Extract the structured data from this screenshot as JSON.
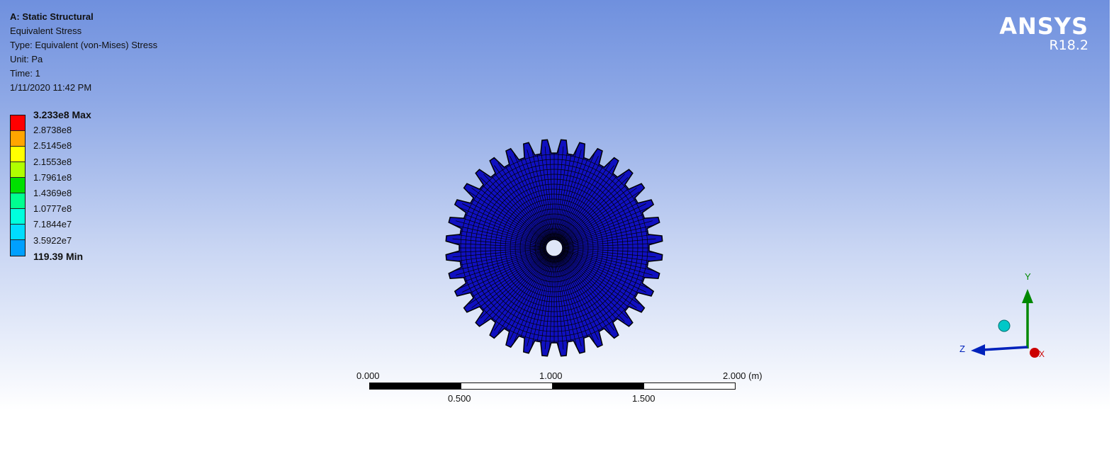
{
  "analysis": {
    "title": "A: Static Structural",
    "result": "Equivalent Stress",
    "type": "Type: Equivalent (von-Mises) Stress",
    "unit": "Unit: Pa",
    "time": "Time: 1",
    "timestamp": "1/11/2020 11:42 PM"
  },
  "legend": {
    "labels": [
      "3.233e8 Max",
      "2.8738e8",
      "2.5145e8",
      "2.1553e8",
      "1.7961e8",
      "1.4369e8",
      "1.0777e8",
      "7.1844e7",
      "3.5922e7",
      "119.39 Min"
    ],
    "colors": [
      "#ff0000",
      "#ffa500",
      "#ffff00",
      "#b0ff00",
      "#00e000",
      "#00ff90",
      "#00ffdd",
      "#00ddff",
      "#00a0ff",
      "#0000ff"
    ]
  },
  "brand": {
    "name": "ANSYS",
    "version": "R18.2"
  },
  "model": {
    "color": "#1010c0",
    "mesh_color": "#000000",
    "tooth_count": 36
  },
  "scale_bar": {
    "top_labels": [
      "0.000",
      "1.000",
      "2.000 (m)"
    ],
    "bottom_labels": [
      "0.500",
      "1.500"
    ]
  },
  "triad": {
    "x_label": "X",
    "y_label": "Y",
    "z_label": "Z",
    "x_color": "#cc0000",
    "y_color": "#008800",
    "z_color": "#0022bb",
    "iso_color": "#00c8c8"
  }
}
